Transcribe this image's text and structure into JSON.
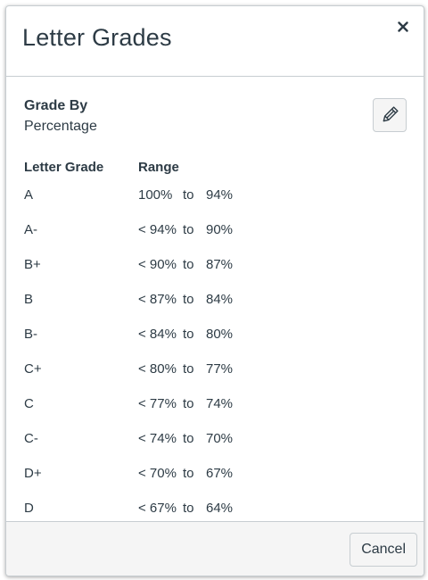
{
  "dialog": {
    "title": "Letter Grades",
    "close_icon": "close-icon"
  },
  "grade_by": {
    "label": "Grade By",
    "value": "Percentage",
    "edit_icon": "pencil-icon"
  },
  "table": {
    "headers": [
      "Letter Grade",
      "Range"
    ],
    "rows": [
      {
        "letter": "A",
        "prefix": "",
        "high": "100%",
        "to": "to",
        "low": "94%"
      },
      {
        "letter": "A-",
        "prefix": "< ",
        "high": "94%",
        "to": "to",
        "low": "90%"
      },
      {
        "letter": "B+",
        "prefix": "< ",
        "high": "90%",
        "to": "to",
        "low": "87%"
      },
      {
        "letter": "B",
        "prefix": "< ",
        "high": "87%",
        "to": "to",
        "low": "84%"
      },
      {
        "letter": "B-",
        "prefix": "< ",
        "high": "84%",
        "to": "to",
        "low": "80%"
      },
      {
        "letter": "C+",
        "prefix": "< ",
        "high": "80%",
        "to": "to",
        "low": "77%"
      },
      {
        "letter": "C",
        "prefix": "< ",
        "high": "77%",
        "to": "to",
        "low": "74%"
      },
      {
        "letter": "C-",
        "prefix": "< ",
        "high": "74%",
        "to": "to",
        "low": "70%"
      },
      {
        "letter": "D+",
        "prefix": "< ",
        "high": "70%",
        "to": "to",
        "low": "67%"
      },
      {
        "letter": "D",
        "prefix": "< ",
        "high": "67%",
        "to": "to",
        "low": "64%"
      }
    ]
  },
  "footer": {
    "cancel_label": "Cancel"
  }
}
